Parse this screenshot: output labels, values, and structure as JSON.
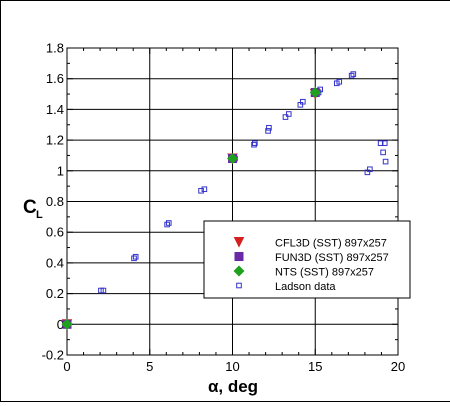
{
  "chart_data": {
    "type": "scatter",
    "title": "",
    "xlabel": "α, deg",
    "ylabel": "C",
    "ylabel_sub": "L",
    "xlim": [
      0,
      20
    ],
    "ylim": [
      -0.2,
      1.8
    ],
    "xticks": [
      0,
      5,
      10,
      15,
      20
    ],
    "yticks": [
      -0.2,
      0,
      0.2,
      0.4,
      0.6,
      0.8,
      1,
      1.2,
      1.4,
      1.6,
      1.8
    ],
    "xtick_labels": [
      "0",
      "5",
      "10",
      "15",
      "20"
    ],
    "ytick_labels": [
      "-0.2",
      "0",
      "0.2",
      "0.4",
      "0.6",
      "0.8",
      "1",
      "1.2",
      "1.4",
      "1.6",
      "1.8"
    ],
    "grid": true,
    "legend_position": "lower-right",
    "series": [
      {
        "name": "CFL3D (SST) 897x257",
        "marker": "triangle-down",
        "color": "#d42020",
        "x": [
          0,
          10,
          15
        ],
        "y": [
          0,
          1.08,
          1.5
        ]
      },
      {
        "name": "FUN3D (SST) 897x257",
        "marker": "square",
        "color": "#6a2aa8",
        "x": [
          0,
          10,
          15
        ],
        "y": [
          0,
          1.08,
          1.51
        ]
      },
      {
        "name": "NTS (SST) 897x257",
        "marker": "diamond",
        "color": "#1fa01f",
        "x": [
          0,
          10,
          15
        ],
        "y": [
          0,
          1.08,
          1.51
        ]
      },
      {
        "name": "Ladson data",
        "marker": "open-square",
        "color": "#3333cc",
        "x": [
          -0.05,
          0.05,
          2.05,
          2.2,
          4.05,
          4.15,
          6.05,
          6.15,
          8.1,
          8.3,
          10.05,
          10.15,
          11.3,
          11.35,
          12.15,
          12.2,
          13.2,
          13.4,
          14.1,
          14.25,
          15.2,
          15.3,
          16.3,
          16.45,
          17.2,
          17.3,
          18.15,
          18.3,
          18.95,
          19.1,
          19.2,
          19.25
        ],
        "y": [
          0,
          0.01,
          0.22,
          0.22,
          0.43,
          0.44,
          0.65,
          0.66,
          0.87,
          0.88,
          1.07,
          1.08,
          1.17,
          1.18,
          1.26,
          1.28,
          1.35,
          1.37,
          1.43,
          1.45,
          1.51,
          1.53,
          1.57,
          1.58,
          1.62,
          1.63,
          0.99,
          1.01,
          1.18,
          1.12,
          1.18,
          1.06
        ]
      }
    ]
  }
}
